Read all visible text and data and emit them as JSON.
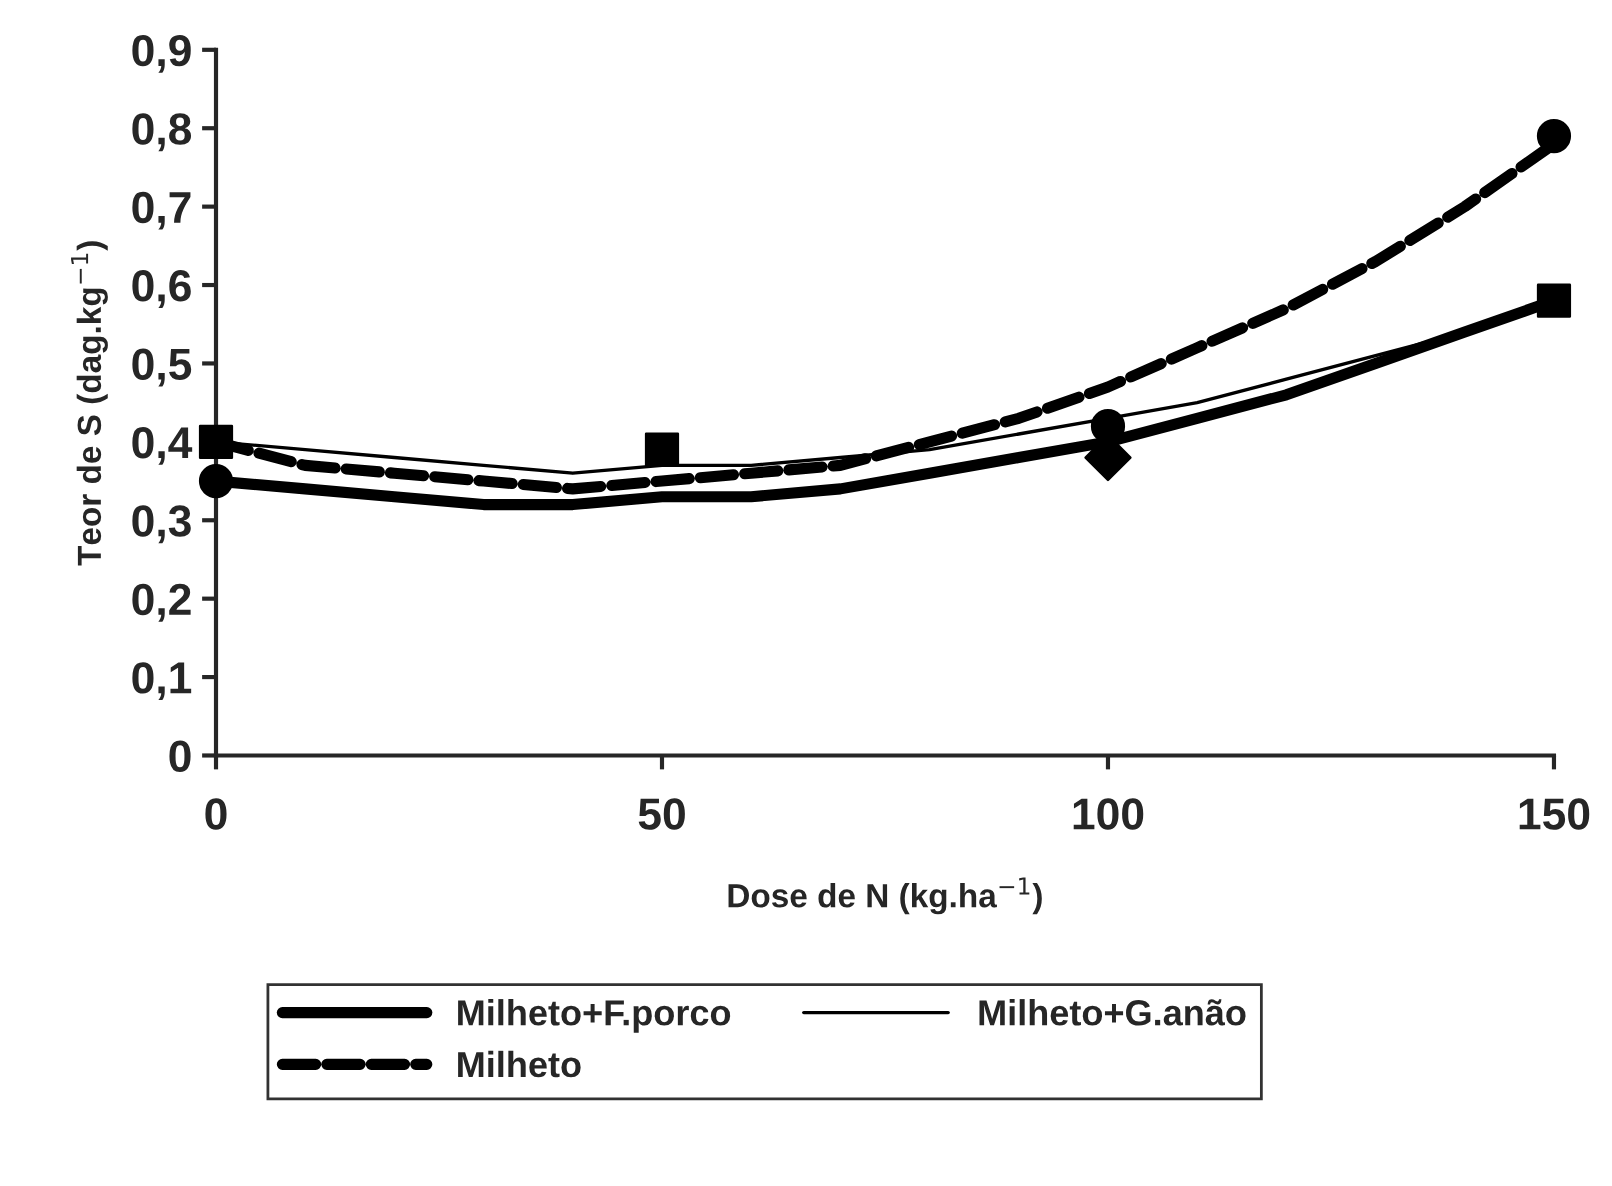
{
  "chart_data": {
    "type": "line",
    "xlabel": "Dose de N (kg.ha$^{−1}$)",
    "ylabel": "Teor de S (dag.kg$^{−1}$)",
    "xlim": [
      0,
      150
    ],
    "xticks": [
      0,
      50,
      100,
      150
    ],
    "ylim": [
      0,
      0.9
    ],
    "yticks": [
      {
        "value": 0,
        "label": "0"
      },
      {
        "value": 0.1,
        "label": "0,1"
      },
      {
        "value": 0.2,
        "label": "0,2"
      },
      {
        "value": 0.3,
        "label": "0,3"
      },
      {
        "value": 0.4,
        "label": "0,4"
      },
      {
        "value": 0.5,
        "label": "0,5"
      },
      {
        "value": 0.6,
        "label": "0,6"
      },
      {
        "value": 0.7,
        "label": "0,7"
      },
      {
        "value": 0.8,
        "label": "0,8"
      },
      {
        "value": 0.9,
        "label": "0,9"
      }
    ],
    "grid": false,
    "legend": "bottom",
    "series": [
      {
        "name": "Milheto+F.porco",
        "color": "#000000",
        "line_style": "solid",
        "marker": "none",
        "x": [
          0,
          10,
          20,
          30,
          40,
          50,
          60,
          70,
          80,
          90,
          100,
          110,
          120,
          130,
          140,
          150
        ],
        "values": [
          0.35,
          0.34,
          0.33,
          0.32,
          0.32,
          0.33,
          0.33,
          0.34,
          0.36,
          0.38,
          0.4,
          0.43,
          0.46,
          0.5,
          0.54,
          0.58
        ]
      },
      {
        "name": "Milheto+G.anão",
        "color": "#000000",
        "line_style": "solid",
        "marker": "none",
        "x": [
          0,
          10,
          20,
          30,
          40,
          50,
          60,
          70,
          80,
          90,
          100,
          110,
          120,
          130,
          140,
          150
        ],
        "values": [
          0.4,
          0.39,
          0.38,
          0.37,
          0.36,
          0.37,
          0.37,
          0.38,
          0.39,
          0.41,
          0.43,
          0.45,
          0.48,
          0.51,
          0.54,
          0.58
        ]
      },
      {
        "name": "Milheto",
        "color": "#000000",
        "line_style": "dashed",
        "marker": "none",
        "x": [
          0,
          10,
          20,
          30,
          40,
          50,
          60,
          70,
          80,
          90,
          100,
          110,
          120,
          130,
          140,
          150
        ],
        "values": [
          0.4,
          0.37,
          0.36,
          0.35,
          0.34,
          0.35,
          0.36,
          0.37,
          0.4,
          0.43,
          0.47,
          0.52,
          0.57,
          0.63,
          0.7,
          0.78
        ]
      },
      {
        "type": "scatter",
        "color": "#000000",
        "marker": "circle",
        "x": [
          0,
          100,
          150
        ],
        "values": [
          0.35,
          0.42,
          0.79
        ]
      },
      {
        "type": "scatter",
        "color": "#000000",
        "marker": "square",
        "x": [
          0,
          50,
          150
        ],
        "values": [
          0.4,
          0.39,
          0.58
        ]
      },
      {
        "type": "scatter",
        "color": "#000000",
        "marker": "diamond",
        "x": [
          100
        ],
        "values": [
          0.38
        ]
      }
    ]
  }
}
